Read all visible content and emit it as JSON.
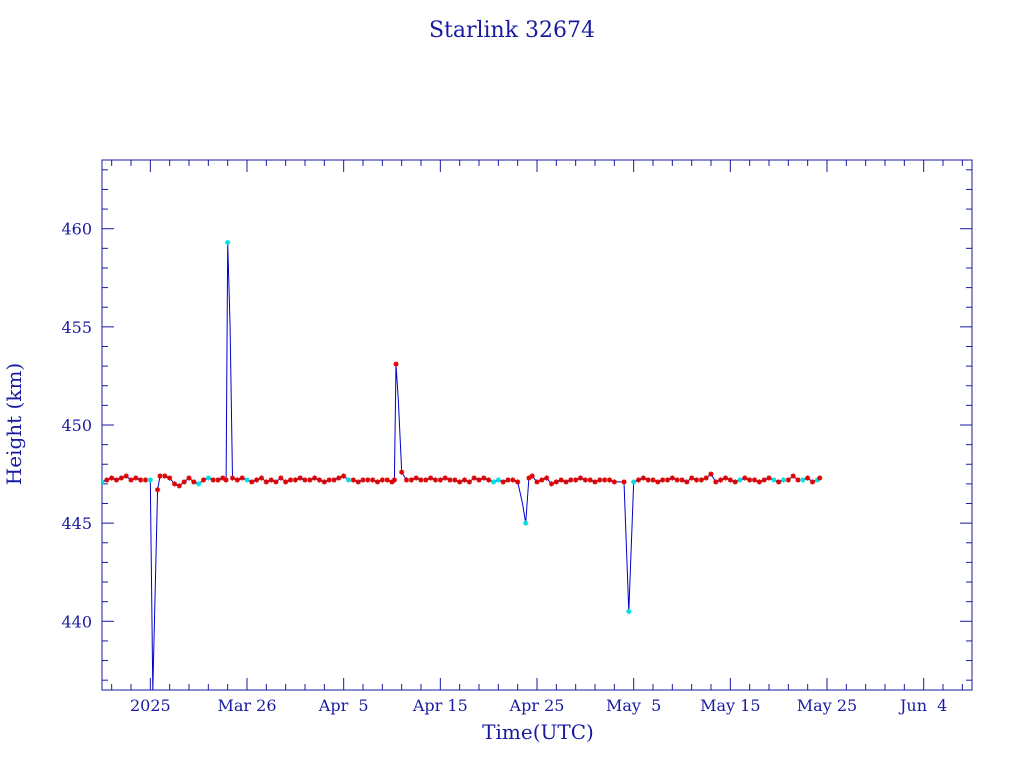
{
  "chart_data": {
    "type": "line",
    "title": "Starlink 32674",
    "xlabel": "Time(UTC)",
    "ylabel": "Height (km)",
    "x_range": [
      "2025-03-11",
      "2025-06-09"
    ],
    "ylim": [
      436.5,
      463.5
    ],
    "x_ticks": [
      {
        "date": "2025-03-16",
        "label": "2025"
      },
      {
        "date": "2025-03-26",
        "label": "Mar 26"
      },
      {
        "date": "2025-04-05",
        "label": "Apr  5"
      },
      {
        "date": "2025-04-15",
        "label": "Apr 15"
      },
      {
        "date": "2025-04-25",
        "label": "Apr 25"
      },
      {
        "date": "2025-05-05",
        "label": "May  5"
      },
      {
        "date": "2025-05-15",
        "label": "May 15"
      },
      {
        "date": "2025-05-25",
        "label": "May 25"
      },
      {
        "date": "2025-06-04",
        "label": "Jun  4"
      }
    ],
    "y_ticks": [
      440,
      445,
      450,
      455,
      460
    ],
    "grid": false,
    "series": [
      {
        "color": "#0000cc",
        "marker_colors": {
          "primary": "#dd0000",
          "secondary": "#00e0e0"
        },
        "points": [
          {
            "x": "2025-03-11 00:00",
            "y": 447.1,
            "m": "c"
          },
          {
            "x": "2025-03-11 12:00",
            "y": 447.2,
            "m": "r"
          },
          {
            "x": "2025-03-12 00:00",
            "y": 447.3,
            "m": "r"
          },
          {
            "x": "2025-03-12 12:00",
            "y": 447.2,
            "m": "r"
          },
          {
            "x": "2025-03-13 00:00",
            "y": 447.3,
            "m": "r"
          },
          {
            "x": "2025-03-13 12:00",
            "y": 447.4,
            "m": "r"
          },
          {
            "x": "2025-03-14 00:00",
            "y": 447.2,
            "m": "r"
          },
          {
            "x": "2025-03-14 12:00",
            "y": 447.3,
            "m": "r"
          },
          {
            "x": "2025-03-15 00:00",
            "y": 447.2,
            "m": "r"
          },
          {
            "x": "2025-03-15 12:00",
            "y": 447.2,
            "m": "r"
          },
          {
            "x": "2025-03-16 00:00",
            "y": 447.2,
            "m": "c"
          },
          {
            "x": "2025-03-16 06:00",
            "y": 436.5,
            "m": "n"
          },
          {
            "x": "2025-03-16 18:00",
            "y": 446.7,
            "m": "r"
          },
          {
            "x": "2025-03-17 00:00",
            "y": 447.4,
            "m": "r"
          },
          {
            "x": "2025-03-17 12:00",
            "y": 447.4,
            "m": "r"
          },
          {
            "x": "2025-03-18 00:00",
            "y": 447.3,
            "m": "r"
          },
          {
            "x": "2025-03-18 12:00",
            "y": 447.0,
            "m": "r"
          },
          {
            "x": "2025-03-19 00:00",
            "y": 446.9,
            "m": "r"
          },
          {
            "x": "2025-03-19 12:00",
            "y": 447.1,
            "m": "r"
          },
          {
            "x": "2025-03-20 00:00",
            "y": 447.3,
            "m": "r"
          },
          {
            "x": "2025-03-20 12:00",
            "y": 447.1,
            "m": "r"
          },
          {
            "x": "2025-03-21 00:00",
            "y": 447.0,
            "m": "c"
          },
          {
            "x": "2025-03-21 12:00",
            "y": 447.2,
            "m": "r"
          },
          {
            "x": "2025-03-22 00:00",
            "y": 447.3,
            "m": "c"
          },
          {
            "x": "2025-03-22 12:00",
            "y": 447.2,
            "m": "r"
          },
          {
            "x": "2025-03-23 00:00",
            "y": 447.2,
            "m": "r"
          },
          {
            "x": "2025-03-23 12:00",
            "y": 447.3,
            "m": "r"
          },
          {
            "x": "2025-03-23 20:00",
            "y": 447.2,
            "m": "r"
          },
          {
            "x": "2025-03-24 00:00",
            "y": 459.3,
            "m": "c"
          },
          {
            "x": "2025-03-24 06:00",
            "y": 455.0,
            "m": "n"
          },
          {
            "x": "2025-03-24 12:00",
            "y": 447.3,
            "m": "r"
          },
          {
            "x": "2025-03-25 00:00",
            "y": 447.2,
            "m": "r"
          },
          {
            "x": "2025-03-25 12:00",
            "y": 447.3,
            "m": "r"
          },
          {
            "x": "2025-03-26 00:00",
            "y": 447.2,
            "m": "c"
          },
          {
            "x": "2025-03-26 12:00",
            "y": 447.1,
            "m": "r"
          },
          {
            "x": "2025-03-27 00:00",
            "y": 447.2,
            "m": "r"
          },
          {
            "x": "2025-03-27 12:00",
            "y": 447.3,
            "m": "r"
          },
          {
            "x": "2025-03-28 00:00",
            "y": 447.1,
            "m": "r"
          },
          {
            "x": "2025-03-28 12:00",
            "y": 447.2,
            "m": "r"
          },
          {
            "x": "2025-03-29 00:00",
            "y": 447.1,
            "m": "r"
          },
          {
            "x": "2025-03-29 12:00",
            "y": 447.3,
            "m": "r"
          },
          {
            "x": "2025-03-30 00:00",
            "y": 447.1,
            "m": "r"
          },
          {
            "x": "2025-03-30 12:00",
            "y": 447.2,
            "m": "r"
          },
          {
            "x": "2025-03-31 00:00",
            "y": 447.2,
            "m": "r"
          },
          {
            "x": "2025-03-31 12:00",
            "y": 447.3,
            "m": "r"
          },
          {
            "x": "2025-04-01 00:00",
            "y": 447.2,
            "m": "r"
          },
          {
            "x": "2025-04-01 12:00",
            "y": 447.2,
            "m": "r"
          },
          {
            "x": "2025-04-02 00:00",
            "y": 447.3,
            "m": "r"
          },
          {
            "x": "2025-04-02 12:00",
            "y": 447.2,
            "m": "r"
          },
          {
            "x": "2025-04-03 00:00",
            "y": 447.1,
            "m": "r"
          },
          {
            "x": "2025-04-03 12:00",
            "y": 447.2,
            "m": "r"
          },
          {
            "x": "2025-04-04 00:00",
            "y": 447.2,
            "m": "r"
          },
          {
            "x": "2025-04-04 12:00",
            "y": 447.3,
            "m": "r"
          },
          {
            "x": "2025-04-05 00:00",
            "y": 447.4,
            "m": "r"
          },
          {
            "x": "2025-04-05 12:00",
            "y": 447.2,
            "m": "c"
          },
          {
            "x": "2025-04-06 00:00",
            "y": 447.2,
            "m": "r"
          },
          {
            "x": "2025-04-06 12:00",
            "y": 447.1,
            "m": "r"
          },
          {
            "x": "2025-04-07 00:00",
            "y": 447.2,
            "m": "r"
          },
          {
            "x": "2025-04-07 12:00",
            "y": 447.2,
            "m": "r"
          },
          {
            "x": "2025-04-08 00:00",
            "y": 447.2,
            "m": "r"
          },
          {
            "x": "2025-04-08 12:00",
            "y": 447.1,
            "m": "r"
          },
          {
            "x": "2025-04-09 00:00",
            "y": 447.2,
            "m": "r"
          },
          {
            "x": "2025-04-09 12:00",
            "y": 447.2,
            "m": "r"
          },
          {
            "x": "2025-04-10 00:00",
            "y": 447.1,
            "m": "r"
          },
          {
            "x": "2025-04-10 06:00",
            "y": 447.2,
            "m": "r"
          },
          {
            "x": "2025-04-10 10:00",
            "y": 453.1,
            "m": "r"
          },
          {
            "x": "2025-04-10 16:00",
            "y": 451.2,
            "m": "n"
          },
          {
            "x": "2025-04-11 00:00",
            "y": 447.6,
            "m": "r"
          },
          {
            "x": "2025-04-11 12:00",
            "y": 447.2,
            "m": "r"
          },
          {
            "x": "2025-04-12 00:00",
            "y": 447.2,
            "m": "r"
          },
          {
            "x": "2025-04-12 12:00",
            "y": 447.3,
            "m": "r"
          },
          {
            "x": "2025-04-13 00:00",
            "y": 447.2,
            "m": "r"
          },
          {
            "x": "2025-04-13 12:00",
            "y": 447.2,
            "m": "r"
          },
          {
            "x": "2025-04-14 00:00",
            "y": 447.3,
            "m": "r"
          },
          {
            "x": "2025-04-14 12:00",
            "y": 447.2,
            "m": "r"
          },
          {
            "x": "2025-04-15 00:00",
            "y": 447.2,
            "m": "r"
          },
          {
            "x": "2025-04-15 12:00",
            "y": 447.3,
            "m": "r"
          },
          {
            "x": "2025-04-16 00:00",
            "y": 447.2,
            "m": "r"
          },
          {
            "x": "2025-04-16 12:00",
            "y": 447.2,
            "m": "r"
          },
          {
            "x": "2025-04-17 00:00",
            "y": 447.1,
            "m": "r"
          },
          {
            "x": "2025-04-17 12:00",
            "y": 447.2,
            "m": "r"
          },
          {
            "x": "2025-04-18 00:00",
            "y": 447.1,
            "m": "r"
          },
          {
            "x": "2025-04-18 12:00",
            "y": 447.3,
            "m": "r"
          },
          {
            "x": "2025-04-19 00:00",
            "y": 447.2,
            "m": "r"
          },
          {
            "x": "2025-04-19 12:00",
            "y": 447.3,
            "m": "r"
          },
          {
            "x": "2025-04-20 00:00",
            "y": 447.2,
            "m": "r"
          },
          {
            "x": "2025-04-20 12:00",
            "y": 447.1,
            "m": "c"
          },
          {
            "x": "2025-04-21 00:00",
            "y": 447.2,
            "m": "c"
          },
          {
            "x": "2025-04-21 12:00",
            "y": 447.1,
            "m": "r"
          },
          {
            "x": "2025-04-22 00:00",
            "y": 447.2,
            "m": "r"
          },
          {
            "x": "2025-04-22 12:00",
            "y": 447.2,
            "m": "r"
          },
          {
            "x": "2025-04-23 00:00",
            "y": 447.1,
            "m": "r"
          },
          {
            "x": "2025-04-23 12:00",
            "y": 446.0,
            "m": "n"
          },
          {
            "x": "2025-04-23 20:00",
            "y": 445.0,
            "m": "c"
          },
          {
            "x": "2025-04-24 04:00",
            "y": 447.3,
            "m": "r"
          },
          {
            "x": "2025-04-24 12:00",
            "y": 447.4,
            "m": "r"
          },
          {
            "x": "2025-04-25 00:00",
            "y": 447.1,
            "m": "r"
          },
          {
            "x": "2025-04-25 12:00",
            "y": 447.2,
            "m": "r"
          },
          {
            "x": "2025-04-26 00:00",
            "y": 447.3,
            "m": "r"
          },
          {
            "x": "2025-04-26 12:00",
            "y": 447.0,
            "m": "r"
          },
          {
            "x": "2025-04-27 00:00",
            "y": 447.1,
            "m": "r"
          },
          {
            "x": "2025-04-27 12:00",
            "y": 447.2,
            "m": "r"
          },
          {
            "x": "2025-04-28 00:00",
            "y": 447.1,
            "m": "r"
          },
          {
            "x": "2025-04-28 12:00",
            "y": 447.2,
            "m": "r"
          },
          {
            "x": "2025-04-29 00:00",
            "y": 447.2,
            "m": "r"
          },
          {
            "x": "2025-04-29 12:00",
            "y": 447.3,
            "m": "r"
          },
          {
            "x": "2025-04-30 00:00",
            "y": 447.2,
            "m": "r"
          },
          {
            "x": "2025-04-30 12:00",
            "y": 447.2,
            "m": "r"
          },
          {
            "x": "2025-05-01 00:00",
            "y": 447.1,
            "m": "r"
          },
          {
            "x": "2025-05-01 12:00",
            "y": 447.2,
            "m": "r"
          },
          {
            "x": "2025-05-02 00:00",
            "y": 447.2,
            "m": "r"
          },
          {
            "x": "2025-05-02 12:00",
            "y": 447.2,
            "m": "r"
          },
          {
            "x": "2025-05-03 00:00",
            "y": 447.1,
            "m": "r"
          },
          {
            "x": "2025-05-04 00:00",
            "y": 447.1,
            "m": "r"
          },
          {
            "x": "2025-05-04 12:00",
            "y": 440.5,
            "m": "c"
          },
          {
            "x": "2025-05-05 00:00",
            "y": 447.1,
            "m": "c"
          },
          {
            "x": "2025-05-05 12:00",
            "y": 447.2,
            "m": "r"
          },
          {
            "x": "2025-05-06 00:00",
            "y": 447.3,
            "m": "r"
          },
          {
            "x": "2025-05-06 12:00",
            "y": 447.2,
            "m": "r"
          },
          {
            "x": "2025-05-07 00:00",
            "y": 447.2,
            "m": "r"
          },
          {
            "x": "2025-05-07 12:00",
            "y": 447.1,
            "m": "r"
          },
          {
            "x": "2025-05-08 00:00",
            "y": 447.2,
            "m": "r"
          },
          {
            "x": "2025-05-08 12:00",
            "y": 447.2,
            "m": "r"
          },
          {
            "x": "2025-05-09 00:00",
            "y": 447.3,
            "m": "r"
          },
          {
            "x": "2025-05-09 12:00",
            "y": 447.2,
            "m": "r"
          },
          {
            "x": "2025-05-10 00:00",
            "y": 447.2,
            "m": "r"
          },
          {
            "x": "2025-05-10 12:00",
            "y": 447.1,
            "m": "r"
          },
          {
            "x": "2025-05-11 00:00",
            "y": 447.3,
            "m": "r"
          },
          {
            "x": "2025-05-11 12:00",
            "y": 447.2,
            "m": "r"
          },
          {
            "x": "2025-05-12 00:00",
            "y": 447.2,
            "m": "r"
          },
          {
            "x": "2025-05-12 12:00",
            "y": 447.3,
            "m": "r"
          },
          {
            "x": "2025-05-13 00:00",
            "y": 447.5,
            "m": "r"
          },
          {
            "x": "2025-05-13 12:00",
            "y": 447.1,
            "m": "r"
          },
          {
            "x": "2025-05-14 00:00",
            "y": 447.2,
            "m": "r"
          },
          {
            "x": "2025-05-14 12:00",
            "y": 447.3,
            "m": "r"
          },
          {
            "x": "2025-05-15 00:00",
            "y": 447.2,
            "m": "r"
          },
          {
            "x": "2025-05-15 12:00",
            "y": 447.1,
            "m": "r"
          },
          {
            "x": "2025-05-16 00:00",
            "y": 447.2,
            "m": "c"
          },
          {
            "x": "2025-05-16 12:00",
            "y": 447.3,
            "m": "r"
          },
          {
            "x": "2025-05-17 00:00",
            "y": 447.2,
            "m": "r"
          },
          {
            "x": "2025-05-17 12:00",
            "y": 447.2,
            "m": "r"
          },
          {
            "x": "2025-05-18 00:00",
            "y": 447.1,
            "m": "r"
          },
          {
            "x": "2025-05-18 12:00",
            "y": 447.2,
            "m": "r"
          },
          {
            "x": "2025-05-19 00:00",
            "y": 447.3,
            "m": "r"
          },
          {
            "x": "2025-05-19 12:00",
            "y": 447.2,
            "m": "c"
          },
          {
            "x": "2025-05-20 00:00",
            "y": 447.1,
            "m": "r"
          },
          {
            "x": "2025-05-20 12:00",
            "y": 447.2,
            "m": "c"
          },
          {
            "x": "2025-05-21 00:00",
            "y": 447.2,
            "m": "r"
          },
          {
            "x": "2025-05-21 12:00",
            "y": 447.4,
            "m": "r"
          },
          {
            "x": "2025-05-22 00:00",
            "y": 447.2,
            "m": "r"
          },
          {
            "x": "2025-05-22 12:00",
            "y": 447.2,
            "m": "c"
          },
          {
            "x": "2025-05-23 00:00",
            "y": 447.3,
            "m": "r"
          },
          {
            "x": "2025-05-23 12:00",
            "y": 447.1,
            "m": "r"
          },
          {
            "x": "2025-05-24 00:00",
            "y": 447.2,
            "m": "c"
          },
          {
            "x": "2025-05-24 06:00",
            "y": 447.3,
            "m": "r"
          }
        ]
      }
    ]
  }
}
